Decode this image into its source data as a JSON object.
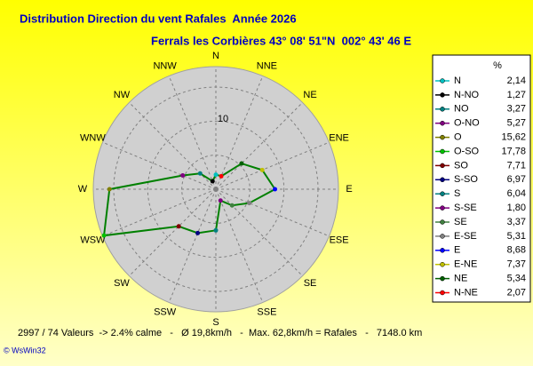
{
  "chart_data": {
    "type": "radar",
    "title": "Distribution Direction du vent Rafales  Année 2026",
    "subtitle": "Ferrals les Corbières 43° 08' 51\"N  002° 43' 46 E",
    "directions": [
      "N",
      "NNE",
      "NE",
      "ENE",
      "E",
      "ESE",
      "SE",
      "SSE",
      "S",
      "SSW",
      "SW",
      "WSW",
      "W",
      "WNW",
      "NW",
      "NNW"
    ],
    "rlim": [
      0,
      18
    ],
    "rticks": [
      10
    ],
    "rings": [
      5,
      10,
      15
    ],
    "grid": true,
    "line_color": "#008000",
    "legend_header": "%",
    "categories": [
      "N",
      "N-NO",
      "NO",
      "O-NO",
      "O",
      "O-SO",
      "SO",
      "S-SO",
      "S",
      "S-SE",
      "SE",
      "E-SE",
      "E",
      "E-NE",
      "NE",
      "N-NE"
    ],
    "values": [
      2.14,
      1.27,
      3.27,
      5.27,
      15.62,
      17.78,
      7.71,
      6.97,
      6.04,
      1.8,
      3.37,
      5.31,
      8.68,
      7.37,
      5.34,
      2.07
    ],
    "value_labels": [
      "2,14",
      "1,27",
      "3,27",
      "5,27",
      "15,62",
      "17,78",
      "7,71",
      "6,97",
      "6,04",
      "1,80",
      "3,37",
      "5,31",
      "8,68",
      "7,37",
      "5,34",
      "2,07"
    ],
    "colors": [
      "#00c0c0",
      "#000000",
      "#008080",
      "#800080",
      "#808000",
      "#00c000",
      "#800000",
      "#000080",
      "#008080",
      "#800080",
      "#408040",
      "#808080",
      "#0000ff",
      "#c0c000",
      "#006000",
      "#ff0000"
    ],
    "footer": "2997 / 74 Valeurs  -> 2.4% calme   -   Ø 19,8km/h   -  Max. 62,8km/h = Rafales   -   7148.0 km",
    "credit": "© WsWin32"
  }
}
